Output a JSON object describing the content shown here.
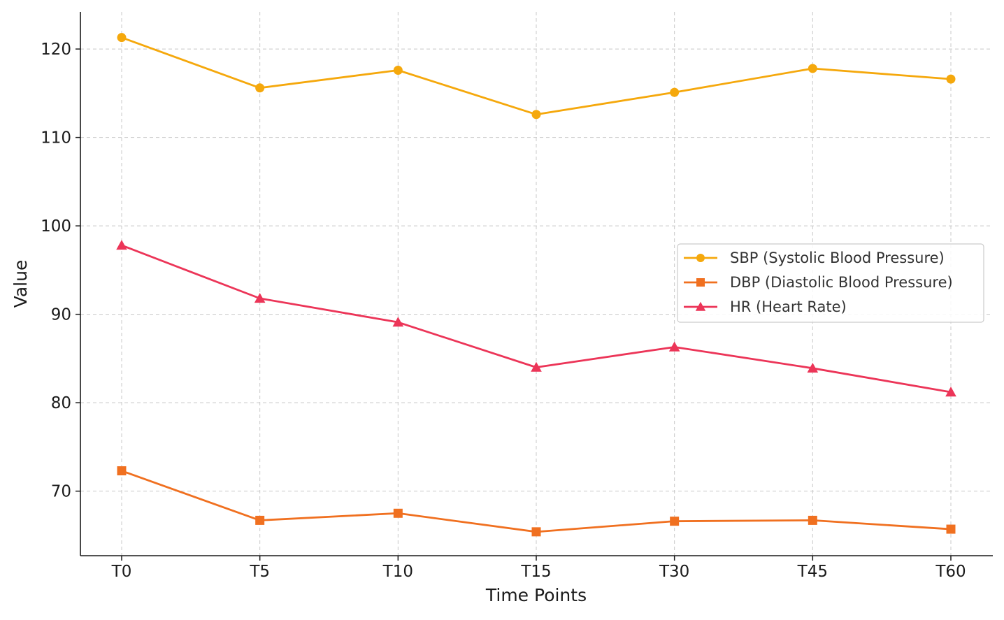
{
  "chart_data": {
    "type": "line",
    "xlabel": "Time Points",
    "ylabel": "Value",
    "categories": [
      "T0",
      "T5",
      "T10",
      "T15",
      "T30",
      "T45",
      "T60"
    ],
    "ylim": [
      62.7,
      124.2
    ],
    "yticks": [
      70,
      80,
      90,
      100,
      110,
      120
    ],
    "grid": true,
    "legend_position": "center-right",
    "series": [
      {
        "name": "SBP (Systolic Blood Pressure)",
        "color": "#F5A80C",
        "marker": "circle",
        "values": [
          121.3,
          115.6,
          117.6,
          112.6,
          115.1,
          117.8,
          116.6
        ]
      },
      {
        "name": "DBP (Diastolic Blood Pressure)",
        "color": "#F07020",
        "marker": "square",
        "values": [
          72.3,
          66.7,
          67.5,
          65.4,
          66.6,
          66.7,
          65.7
        ]
      },
      {
        "name": "HR (Heart Rate)",
        "color": "#EC3558",
        "marker": "triangle",
        "values": [
          97.8,
          91.8,
          89.1,
          84.0,
          86.3,
          83.9,
          81.2
        ]
      }
    ]
  }
}
